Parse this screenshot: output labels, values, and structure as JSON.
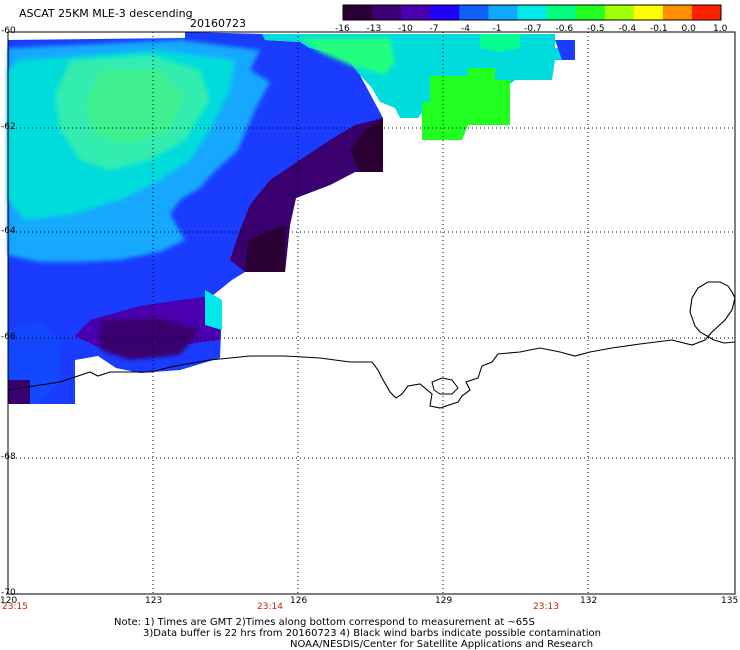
{
  "header": {
    "title": "ASCAT 25KM MLE-3 descending",
    "date": "20160723"
  },
  "colorbar": {
    "labels": [
      "-16",
      "-13",
      "-10",
      "-7",
      "-4",
      "-1",
      "-0.7",
      "-0.6",
      "-0.5",
      "-0.4",
      "-0.1",
      "0.0",
      "1.0"
    ],
    "colors": [
      "#2a0033",
      "#3a0070",
      "#4a00b0",
      "#2200ff",
      "#1060ff",
      "#10a8ff",
      "#00e8e8",
      "#00ff80",
      "#20ff20",
      "#a0ff00",
      "#ffff00",
      "#ff9000",
      "#ff2000"
    ]
  },
  "axes": {
    "lat_labels": [
      "-60",
      "-62",
      "-64",
      "-66",
      "-68",
      "-70"
    ],
    "lon_labels": [
      "120",
      "123",
      "126",
      "129",
      "132",
      "135"
    ],
    "time_labels": [
      "23:15",
      "23:14",
      "23:13"
    ]
  },
  "notes": {
    "line1": "Note: 1) Times are GMT 2)Times along bottom correspond to measurement at ~65S",
    "line2": "3)Data buffer is 22 hrs from 20160723 4) Black wind barbs indicate possible contamination",
    "line3": "NOAA/NESDIS/Center for Satellite Applications and Research"
  },
  "palette": {
    "time_label_color": "#cc2200",
    "coast_color": "#000000"
  }
}
